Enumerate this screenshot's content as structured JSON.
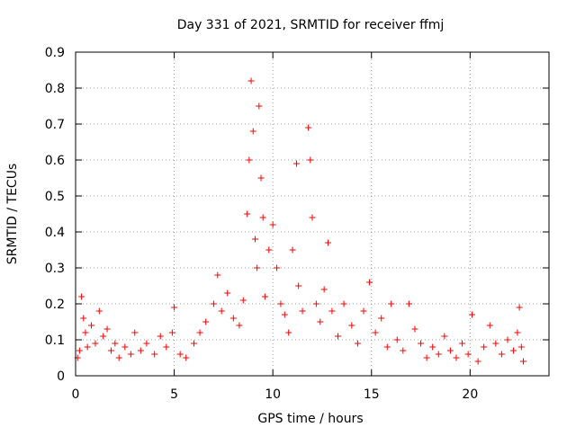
{
  "chart_data": {
    "type": "scatter",
    "title": "Day 331 of 2021, SRMTID for receiver ffmj",
    "xlabel": "GPS time / hours",
    "ylabel": "SRMTID / TECUs",
    "xlim": [
      0,
      24
    ],
    "ylim": [
      0,
      0.9
    ],
    "x_ticks": [
      0,
      5,
      10,
      15,
      20
    ],
    "x_tick_labels": [
      "0",
      "5",
      "10",
      "15",
      "20"
    ],
    "y_ticks": [
      0,
      0.1,
      0.2,
      0.3,
      0.4,
      0.5,
      0.6,
      0.7,
      0.8,
      0.9
    ],
    "y_tick_labels": [
      "0",
      "0.1",
      "0.2",
      "0.3",
      "0.4",
      "0.5",
      "0.6",
      "0.7",
      "0.8",
      "0.9"
    ],
    "grid": true,
    "marker": "+",
    "series": [
      {
        "name": "SRMTID",
        "color": "#ff0000",
        "x_range": [
          0.0,
          22.75
        ],
        "points": [
          [
            0.1,
            0.05
          ],
          [
            0.2,
            0.07
          ],
          [
            0.3,
            0.22
          ],
          [
            0.4,
            0.16
          ],
          [
            0.5,
            0.12
          ],
          [
            0.6,
            0.08
          ],
          [
            0.8,
            0.14
          ],
          [
            1.0,
            0.09
          ],
          [
            1.2,
            0.18
          ],
          [
            1.4,
            0.11
          ],
          [
            1.6,
            0.13
          ],
          [
            1.8,
            0.07
          ],
          [
            2.0,
            0.09
          ],
          [
            2.2,
            0.05
          ],
          [
            2.5,
            0.08
          ],
          [
            2.8,
            0.06
          ],
          [
            3.0,
            0.12
          ],
          [
            3.3,
            0.07
          ],
          [
            3.6,
            0.09
          ],
          [
            4.0,
            0.06
          ],
          [
            4.3,
            0.11
          ],
          [
            4.6,
            0.08
          ],
          [
            4.9,
            0.12
          ],
          [
            5.0,
            0.19
          ],
          [
            5.3,
            0.06
          ],
          [
            5.6,
            0.05
          ],
          [
            6.0,
            0.09
          ],
          [
            6.3,
            0.12
          ],
          [
            6.6,
            0.15
          ],
          [
            7.0,
            0.2
          ],
          [
            7.2,
            0.28
          ],
          [
            7.4,
            0.18
          ],
          [
            7.7,
            0.23
          ],
          [
            8.0,
            0.16
          ],
          [
            8.3,
            0.14
          ],
          [
            8.5,
            0.21
          ],
          [
            8.7,
            0.45
          ],
          [
            8.8,
            0.6
          ],
          [
            8.9,
            0.82
          ],
          [
            9.0,
            0.68
          ],
          [
            9.1,
            0.38
          ],
          [
            9.2,
            0.3
          ],
          [
            9.3,
            0.75
          ],
          [
            9.4,
            0.55
          ],
          [
            9.5,
            0.44
          ],
          [
            9.6,
            0.22
          ],
          [
            9.8,
            0.35
          ],
          [
            10.0,
            0.42
          ],
          [
            10.2,
            0.3
          ],
          [
            10.4,
            0.2
          ],
          [
            10.6,
            0.17
          ],
          [
            10.8,
            0.12
          ],
          [
            11.0,
            0.35
          ],
          [
            11.2,
            0.59
          ],
          [
            11.3,
            0.25
          ],
          [
            11.5,
            0.18
          ],
          [
            11.8,
            0.69
          ],
          [
            11.9,
            0.6
          ],
          [
            12.0,
            0.44
          ],
          [
            12.2,
            0.2
          ],
          [
            12.4,
            0.15
          ],
          [
            12.6,
            0.24
          ],
          [
            12.8,
            0.37
          ],
          [
            13.0,
            0.18
          ],
          [
            13.3,
            0.11
          ],
          [
            13.6,
            0.2
          ],
          [
            14.0,
            0.14
          ],
          [
            14.3,
            0.09
          ],
          [
            14.6,
            0.18
          ],
          [
            14.9,
            0.26
          ],
          [
            15.2,
            0.12
          ],
          [
            15.5,
            0.16
          ],
          [
            15.8,
            0.08
          ],
          [
            16.0,
            0.2
          ],
          [
            16.3,
            0.1
          ],
          [
            16.6,
            0.07
          ],
          [
            16.9,
            0.2
          ],
          [
            17.2,
            0.13
          ],
          [
            17.5,
            0.09
          ],
          [
            17.8,
            0.05
          ],
          [
            18.1,
            0.08
          ],
          [
            18.4,
            0.06
          ],
          [
            18.7,
            0.11
          ],
          [
            19.0,
            0.07
          ],
          [
            19.3,
            0.05
          ],
          [
            19.6,
            0.09
          ],
          [
            19.9,
            0.06
          ],
          [
            20.1,
            0.17
          ],
          [
            20.4,
            0.04
          ],
          [
            20.7,
            0.08
          ],
          [
            21.0,
            0.14
          ],
          [
            21.3,
            0.09
          ],
          [
            21.6,
            0.06
          ],
          [
            21.9,
            0.1
          ],
          [
            22.2,
            0.07
          ],
          [
            22.4,
            0.12
          ],
          [
            22.5,
            0.19
          ],
          [
            22.6,
            0.08
          ],
          [
            22.7,
            0.04
          ]
        ]
      }
    ]
  }
}
